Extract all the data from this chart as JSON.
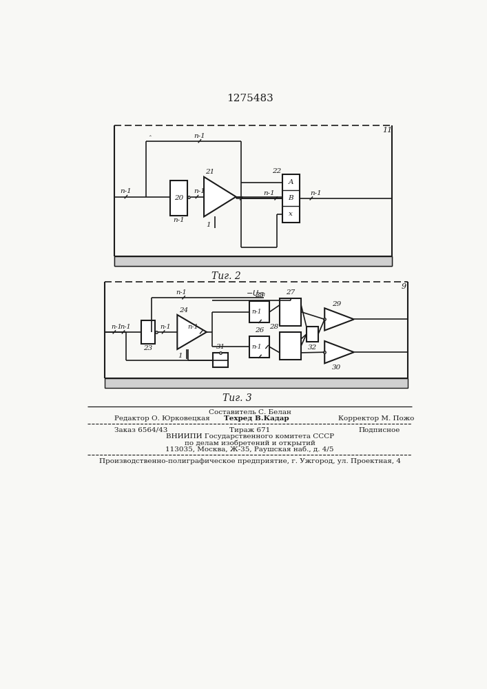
{
  "title": "1275483",
  "fig2_label": "Τиг. 2",
  "fig3_label": "Τиг. 3",
  "footer_line1_center": "Составитель С. Белан",
  "footer_line1_left": "Редактор О. Юрковецкая",
  "footer_line1_mid": "Техред В.Кадар",
  "footer_line1_right": "Корректор М. Пожо",
  "footer_line2_left": "Заказ 6564/43",
  "footer_line2_mid": "Тираж 671",
  "footer_line2_right": "Подписное",
  "footer_line3": "ВНИИПИ Государственного комитета СССР",
  "footer_line4": "по делам изобретений и открытий",
  "footer_line5": "113035, Москва, Ж-35, Раушская наб., д. 4/5",
  "footer_line6": "Производственно-полиграфическое предприятие, г. Ужгород, ул. Проектная, 4",
  "bg_color": "#f8f8f5",
  "line_color": "#1a1a1a"
}
